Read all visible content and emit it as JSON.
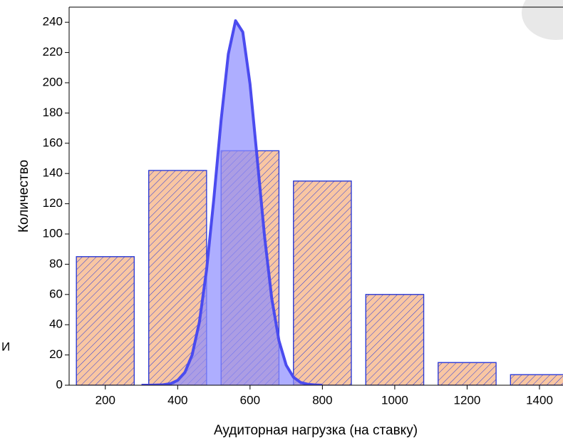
{
  "chart_data": {
    "type": "histogram",
    "xlabel": "Аудиторная нагрузка (на ставку)",
    "ylabel": "Количество",
    "fragment": "И",
    "bins": [
      100,
      300,
      500,
      700,
      900,
      1100,
      1300,
      1500
    ],
    "counts": [
      85,
      142,
      155,
      135,
      60,
      15,
      7
    ],
    "bar_color": "#f9c6a2",
    "edge_color": "#2a3ad8",
    "curve": {
      "color": "#4b4bef",
      "fill": "#8c8cff",
      "x": [
        300,
        320,
        340,
        360,
        380,
        400,
        420,
        440,
        460,
        480,
        500,
        520,
        540,
        560,
        580,
        600,
        620,
        640,
        660,
        680,
        700,
        720,
        740,
        760,
        780,
        800
      ],
      "values": [
        0,
        0,
        0.1,
        0.3,
        1.0,
        3.2,
        8.5,
        20.0,
        41.7,
        76.5,
        123.4,
        175.2,
        219.0,
        241.0,
        233.5,
        199.1,
        149.4,
        98.7,
        57.4,
        29.4,
        13.2,
        5.3,
        1.8,
        0.6,
        0.2,
        0
      ]
    },
    "xlim": [
      100,
      1465
    ],
    "ylim": [
      0,
      250
    ],
    "xticks": [
      200,
      400,
      600,
      800,
      1000,
      1200,
      1400
    ],
    "yticks": [
      0,
      20,
      40,
      60,
      80,
      100,
      120,
      140,
      160,
      180,
      200,
      220,
      240
    ]
  }
}
